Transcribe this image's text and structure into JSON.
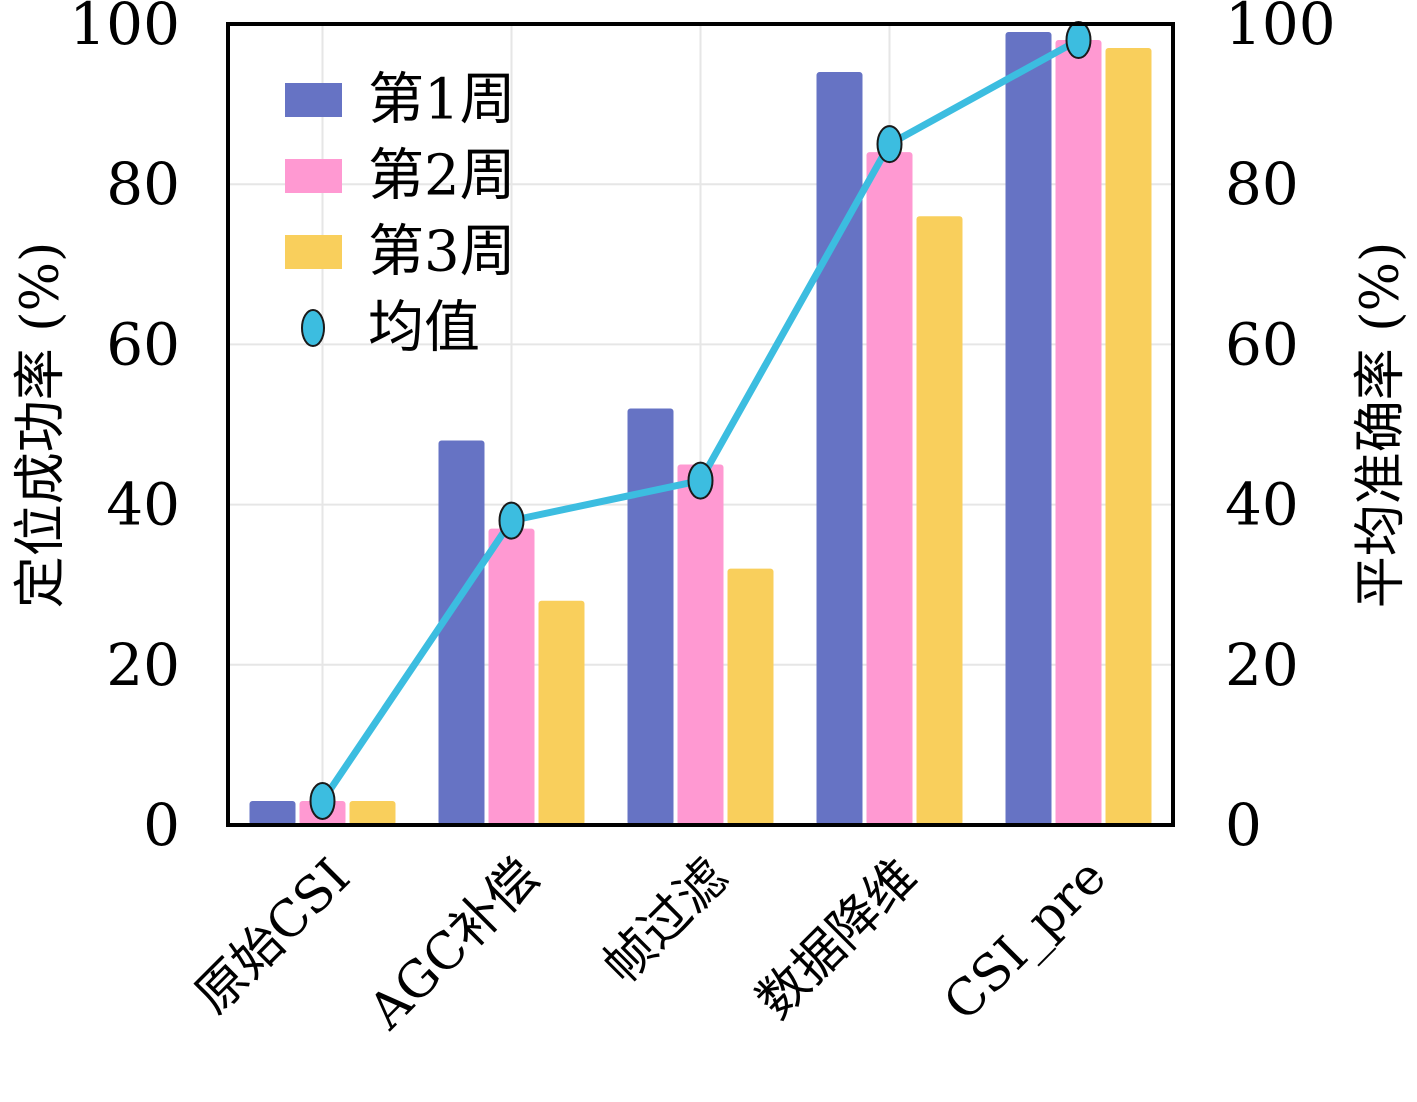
{
  "chart_data": {
    "type": "bar",
    "categories": [
      "原始CSI",
      "AGC补偿",
      "帧过滤",
      "数据降维",
      "CSI_pre"
    ],
    "series": [
      {
        "name": "第1周",
        "values": [
          3,
          48,
          52,
          94,
          99
        ],
        "color": "#6673c4"
      },
      {
        "name": "第2周",
        "values": [
          3,
          37,
          45,
          84,
          98
        ],
        "color": "#ff99d2"
      },
      {
        "name": "第3周",
        "values": [
          3,
          28,
          32,
          76,
          97
        ],
        "color": "#f9cf5c"
      }
    ],
    "line_series": {
      "name": "均值",
      "values": [
        3,
        38,
        43,
        85,
        98
      ],
      "color": "#3cbde0"
    },
    "ylabel": "定位成功率 (%)",
    "ylabel_right": "平均准确率 (%)",
    "ylim": [
      0,
      100
    ],
    "ylim_right": [
      0,
      100
    ],
    "yticks": [
      "0",
      "20",
      "40",
      "60",
      "80",
      "100"
    ],
    "yticks_right": [
      "0",
      "20",
      "40",
      "60",
      "80",
      "100"
    ],
    "grid": true,
    "legend_position": "top-left"
  }
}
